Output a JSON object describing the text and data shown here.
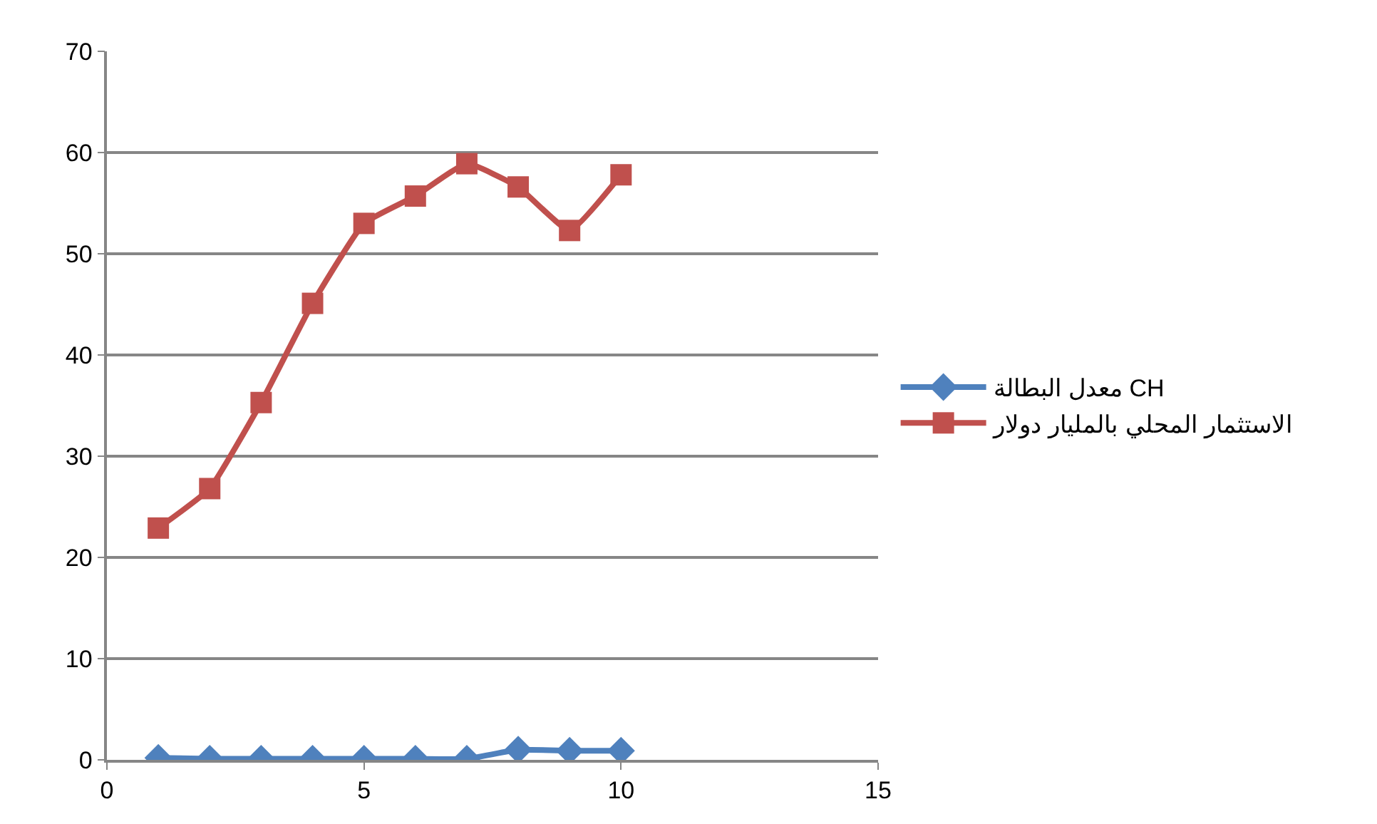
{
  "chart_data": {
    "type": "line",
    "x": [
      1,
      2,
      3,
      4,
      5,
      6,
      7,
      8,
      9,
      10
    ],
    "series": [
      {
        "name": "معدل البطالة CH",
        "color": "#4f81bd",
        "marker": "diamond",
        "values": [
          0.2,
          0.1,
          0.1,
          0.1,
          0.1,
          0.1,
          0.1,
          1.0,
          0.9,
          0.9
        ]
      },
      {
        "name": "الاستثمار المحلي بالمليار دولار",
        "color": "#c0504d",
        "marker": "square",
        "values": [
          22.9,
          26.8,
          35.3,
          45.1,
          53.0,
          55.7,
          58.9,
          56.6,
          52.3,
          57.8
        ]
      }
    ],
    "xlim": [
      0,
      15
    ],
    "xticks": [
      0,
      5,
      10,
      15
    ],
    "ylim": [
      0,
      70
    ],
    "yticks": [
      0,
      10,
      20,
      30,
      40,
      50,
      60,
      70
    ],
    "grid": "y",
    "legend": "right",
    "line_style": "solid"
  }
}
